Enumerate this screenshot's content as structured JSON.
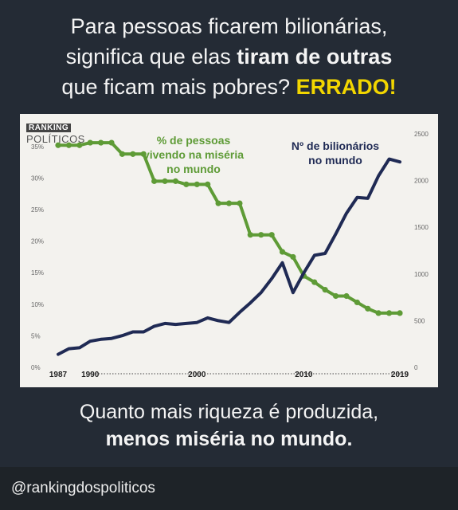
{
  "headline": {
    "line1": "Para pessoas ficarem bilionárias,",
    "line2_pre": "significa que elas ",
    "line2_bold": "tiram de outras",
    "line3_pre": "que ficam mais pobres? ",
    "line3_highlight": "ERRADO!"
  },
  "logo": {
    "top": "RANKING",
    "bottom": "POLÍTICOS"
  },
  "caption": {
    "line1": "Quanto mais riqueza é produzida,",
    "line2": "menos miséria no mundo."
  },
  "footer": {
    "handle": "@rankingdospoliticos"
  },
  "colors": {
    "green": "#5e9b36",
    "navy": "#1f2a54",
    "yellow": "#f2d600"
  },
  "chart_data": {
    "type": "line",
    "x_tick_labels": [
      "1987",
      "1990",
      "2000",
      "2010",
      "2019"
    ],
    "xlim": [
      1987,
      2019
    ],
    "left_axis": {
      "ticks": [
        "0%",
        "5%",
        "10%",
        "15%",
        "20%",
        "25%",
        "30%",
        "35%"
      ],
      "ylim": [
        0,
        37
      ]
    },
    "right_axis": {
      "ticks": [
        "0",
        "500",
        "1000",
        "1500",
        "2000",
        "2500"
      ],
      "ylim": [
        0,
        2500
      ]
    },
    "series": [
      {
        "name": "% de pessoas vivendo na miséria no mundo",
        "axis": "left",
        "color": "#5e9b36",
        "marker": "circle",
        "x": [
          1987,
          1988,
          1989,
          1990,
          1991,
          1992,
          1993,
          1994,
          1995,
          1996,
          1997,
          1998,
          1999,
          2000,
          2001,
          2002,
          2003,
          2004,
          2005,
          2006,
          2007,
          2008,
          2009,
          2010,
          2011,
          2012,
          2013,
          2014,
          2015,
          2016,
          2017,
          2018,
          2019
        ],
        "values": [
          35.2,
          35.2,
          35.2,
          35.6,
          35.6,
          35.6,
          33.8,
          33.8,
          33.8,
          29.5,
          29.5,
          29.5,
          29.0,
          29.0,
          29.0,
          26.0,
          26.0,
          26.0,
          21.0,
          21.0,
          21.0,
          18.3,
          17.5,
          14.5,
          13.5,
          12.3,
          11.3,
          11.3,
          10.3,
          9.3,
          8.6,
          8.6,
          8.6
        ]
      },
      {
        "name": "Nº de bilionários no mundo",
        "axis": "right",
        "color": "#1f2a54",
        "marker": "none",
        "x": [
          1987,
          1988,
          1989,
          1990,
          1991,
          1992,
          1993,
          1994,
          1995,
          1996,
          1997,
          1998,
          1999,
          2000,
          2001,
          2002,
          2003,
          2004,
          2005,
          2006,
          2007,
          2008,
          2009,
          2010,
          2011,
          2012,
          2013,
          2014,
          2015,
          2016,
          2017,
          2018,
          2019
        ],
        "values": [
          140,
          200,
          210,
          280,
          300,
          310,
          340,
          380,
          380,
          440,
          470,
          460,
          470,
          480,
          530,
          500,
          480,
          590,
          690,
          800,
          950,
          1120,
          800,
          1010,
          1200,
          1220,
          1430,
          1650,
          1820,
          1810,
          2050,
          2230,
          2200
        ]
      }
    ]
  }
}
